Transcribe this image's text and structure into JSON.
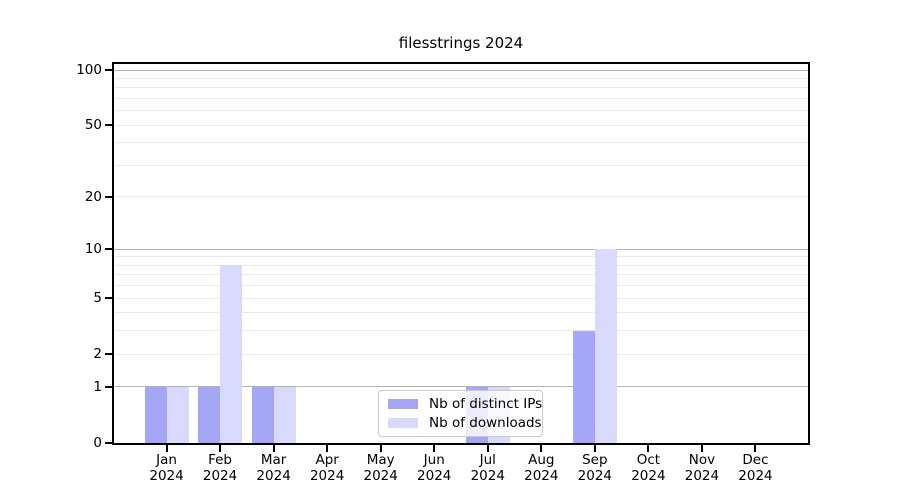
{
  "chart_data": {
    "type": "bar",
    "title": "filesstrings 2024",
    "x": [
      "Jan 2024",
      "Feb 2024",
      "Mar 2024",
      "Apr 2024",
      "May 2024",
      "Jun 2024",
      "Jul 2024",
      "Aug 2024",
      "Sep 2024",
      "Oct 2024",
      "Nov 2024",
      "Dec 2024"
    ],
    "months": [
      "Jan",
      "Feb",
      "Mar",
      "Apr",
      "May",
      "Jun",
      "Jul",
      "Aug",
      "Sep",
      "Oct",
      "Nov",
      "Dec"
    ],
    "year": "2024",
    "series": [
      {
        "name": "Nb of distinct IPs",
        "color": "#a6a6f7",
        "values": [
          1,
          1,
          1,
          0,
          0,
          0,
          1,
          0,
          3,
          0,
          0,
          0
        ]
      },
      {
        "name": "Nb of downloads",
        "color": "#d9d9fb",
        "values": [
          1,
          8,
          1,
          0,
          0,
          0,
          1,
          0,
          10,
          0,
          0,
          0
        ]
      }
    ],
    "xlabel": "",
    "ylabel": "",
    "yscale": "log10(1+x)",
    "yticks": [
      0,
      1,
      2,
      5,
      10,
      20,
      50,
      100
    ],
    "ylim": [
      0,
      108
    ],
    "grid": {
      "major_values": [
        1,
        10,
        100
      ],
      "minor_values": [
        2,
        3,
        4,
        5,
        6,
        7,
        8,
        9,
        20,
        30,
        40,
        50,
        60,
        70,
        80,
        90
      ],
      "major_color": "#b3b3b3",
      "minor_color": "#e9e9e9"
    },
    "legend": {
      "position": "lower center"
    },
    "colors": {
      "background": "#ffffff",
      "spine": "#000000",
      "text": "#000000"
    }
  }
}
